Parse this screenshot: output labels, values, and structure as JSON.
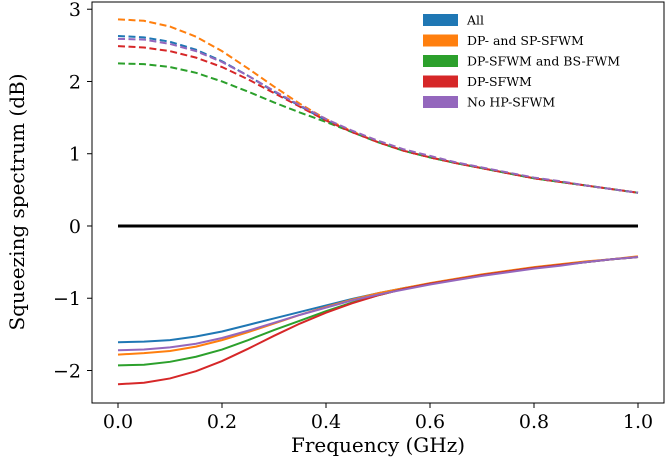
{
  "chart_data": {
    "type": "line",
    "xlabel": "Frequency (GHz)",
    "ylabel": "Squeezing spectrum (dB)",
    "xlim": [
      -0.05,
      1.05
    ],
    "ylim": [
      -2.45,
      3.1
    ],
    "xticks": [
      0.0,
      0.2,
      0.4,
      0.6,
      0.8,
      1.0
    ],
    "xtick_labels": [
      "0.0",
      "0.2",
      "0.4",
      "0.6",
      "0.8",
      "1.0"
    ],
    "yticks": [
      -2,
      -1,
      0,
      1,
      2,
      3
    ],
    "ytick_labels": [
      "−2",
      "−1",
      "0",
      "1",
      "2",
      "3"
    ],
    "legend_position": "top-right",
    "grid": false,
    "x": [
      0.0,
      0.05,
      0.1,
      0.15,
      0.2,
      0.25,
      0.3,
      0.35,
      0.4,
      0.45,
      0.5,
      0.55,
      0.6,
      0.65,
      0.7,
      0.75,
      0.8,
      0.85,
      0.9,
      0.95,
      1.0
    ],
    "series": [
      {
        "name": "All",
        "color": "#1f77b4",
        "upper": [
          2.63,
          2.61,
          2.55,
          2.44,
          2.28,
          2.08,
          1.86,
          1.66,
          1.46,
          1.3,
          1.16,
          1.04,
          0.95,
          0.87,
          0.8,
          0.73,
          0.66,
          0.61,
          0.56,
          0.51,
          0.46
        ],
        "lower": [
          -1.61,
          -1.6,
          -1.58,
          -1.53,
          -1.46,
          -1.37,
          -1.28,
          -1.19,
          -1.1,
          -1.01,
          -0.93,
          -0.86,
          -0.8,
          -0.74,
          -0.68,
          -0.63,
          -0.58,
          -0.54,
          -0.5,
          -0.46,
          -0.43
        ]
      },
      {
        "name": "DP- and SP-SFWM",
        "color": "#ff7f0e",
        "upper": [
          2.86,
          2.84,
          2.76,
          2.62,
          2.42,
          2.18,
          1.93,
          1.69,
          1.48,
          1.31,
          1.16,
          1.04,
          0.95,
          0.87,
          0.8,
          0.73,
          0.66,
          0.61,
          0.56,
          0.51,
          0.46
        ],
        "lower": [
          -1.78,
          -1.76,
          -1.73,
          -1.67,
          -1.58,
          -1.47,
          -1.35,
          -1.23,
          -1.12,
          -1.02,
          -0.93,
          -0.86,
          -0.79,
          -0.73,
          -0.67,
          -0.62,
          -0.57,
          -0.53,
          -0.49,
          -0.46,
          -0.42
        ]
      },
      {
        "name": "DP-SFWM and BS-FWM",
        "color": "#2ca02c",
        "upper": [
          2.25,
          2.24,
          2.2,
          2.12,
          2.0,
          1.86,
          1.71,
          1.57,
          1.44,
          1.3,
          1.16,
          1.04,
          0.95,
          0.87,
          0.8,
          0.73,
          0.66,
          0.61,
          0.56,
          0.51,
          0.46
        ],
        "lower": [
          -1.93,
          -1.92,
          -1.88,
          -1.81,
          -1.71,
          -1.58,
          -1.44,
          -1.31,
          -1.18,
          -1.06,
          -0.96,
          -0.87,
          -0.8,
          -0.74,
          -0.68,
          -0.63,
          -0.58,
          -0.54,
          -0.5,
          -0.46,
          -0.43
        ]
      },
      {
        "name": "DP-SFWM",
        "color": "#d62728",
        "upper": [
          2.49,
          2.47,
          2.42,
          2.33,
          2.2,
          2.03,
          1.84,
          1.65,
          1.46,
          1.3,
          1.16,
          1.04,
          0.95,
          0.87,
          0.8,
          0.73,
          0.66,
          0.61,
          0.56,
          0.51,
          0.46
        ],
        "lower": [
          -2.19,
          -2.17,
          -2.11,
          -2.01,
          -1.87,
          -1.7,
          -1.52,
          -1.35,
          -1.2,
          -1.07,
          -0.96,
          -0.87,
          -0.8,
          -0.74,
          -0.68,
          -0.63,
          -0.58,
          -0.54,
          -0.5,
          -0.46,
          -0.43
        ]
      },
      {
        "name": "No HP-SFWM",
        "color": "#9467bd",
        "upper": [
          2.59,
          2.58,
          2.52,
          2.42,
          2.27,
          2.08,
          1.87,
          1.67,
          1.48,
          1.32,
          1.18,
          1.06,
          0.97,
          0.88,
          0.81,
          0.74,
          0.67,
          0.62,
          0.56,
          0.51,
          0.46
        ],
        "lower": [
          -1.72,
          -1.71,
          -1.68,
          -1.63,
          -1.55,
          -1.45,
          -1.34,
          -1.23,
          -1.13,
          -1.03,
          -0.95,
          -0.88,
          -0.81,
          -0.75,
          -0.69,
          -0.64,
          -0.59,
          -0.55,
          -0.5,
          -0.46,
          -0.43
        ]
      }
    ],
    "baseline": {
      "y": 0,
      "color": "#000000"
    }
  }
}
